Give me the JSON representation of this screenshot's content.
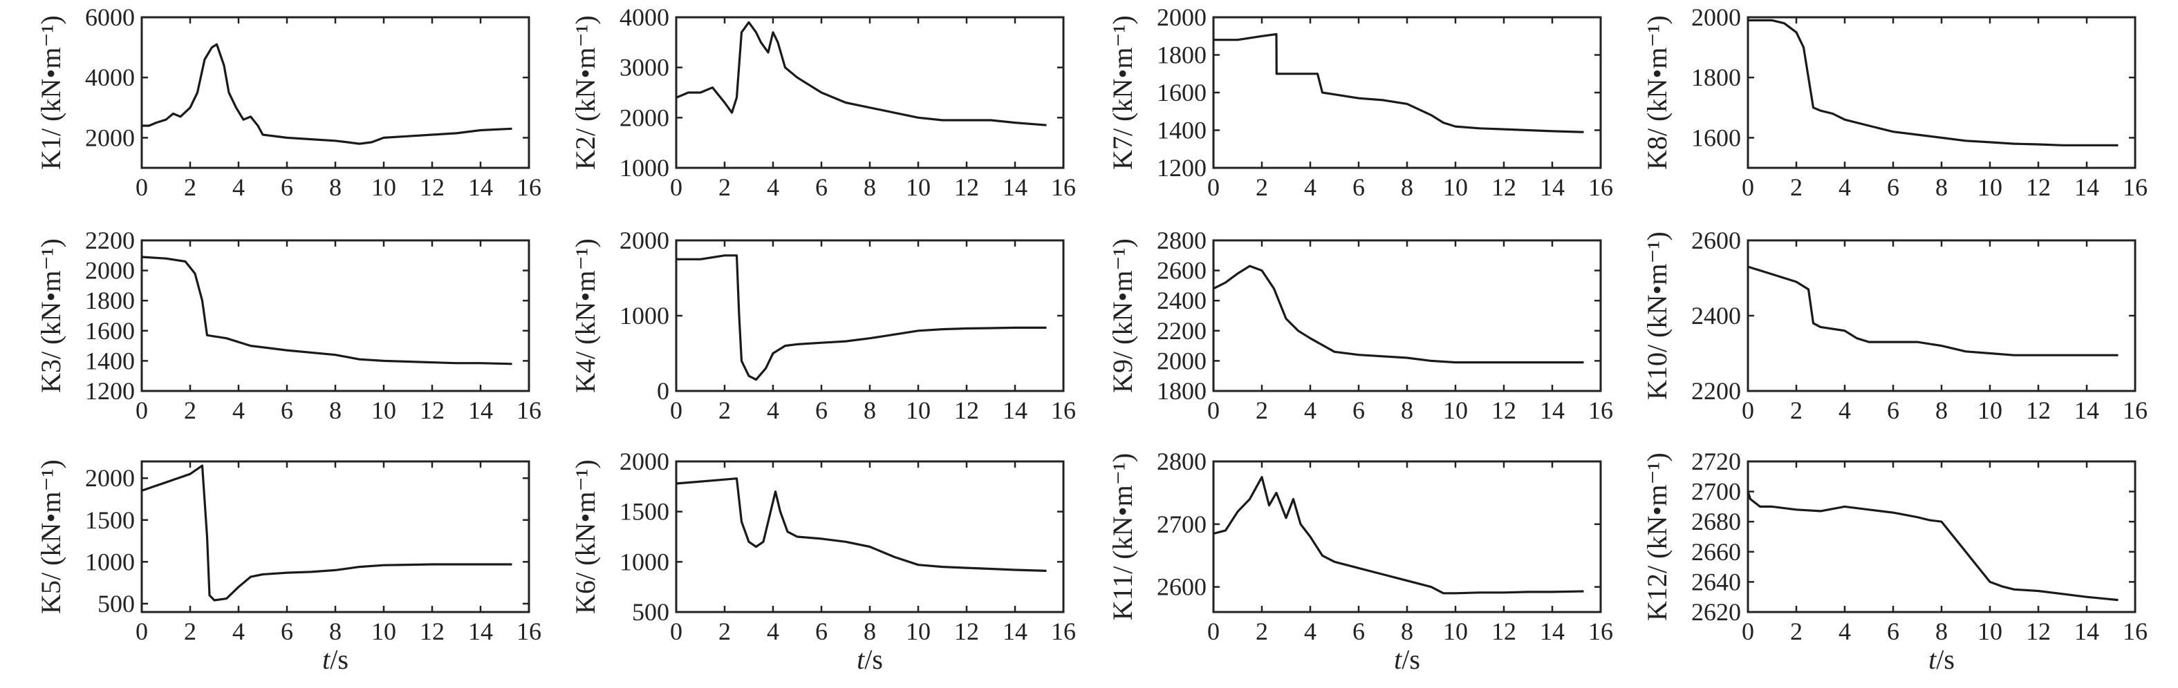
{
  "xlabel_var": "t",
  "xlabel_unit": "/s",
  "chart_data": [
    {
      "type": "line",
      "ylabel": "K1/ (kN•m⁻¹)",
      "xlim": [
        0,
        16
      ],
      "ylim": [
        1000,
        6000
      ],
      "xticks": [
        "0",
        "2",
        "4",
        "6",
        "8",
        "10",
        "12",
        "14",
        "16"
      ],
      "yticks": [
        "2000",
        "4000",
        "6000"
      ],
      "x": [
        0,
        0.3,
        0.6,
        1.0,
        1.3,
        1.6,
        2.0,
        2.3,
        2.6,
        2.9,
        3.1,
        3.4,
        3.6,
        3.9,
        4.2,
        4.5,
        4.8,
        5.0,
        6,
        7,
        8,
        8.5,
        9,
        9.5,
        10,
        11,
        12,
        13,
        14,
        15.3
      ],
      "y": [
        2400,
        2400,
        2500,
        2600,
        2800,
        2700,
        3000,
        3500,
        4600,
        5000,
        5100,
        4400,
        3500,
        3000,
        2600,
        2700,
        2400,
        2100,
        2000,
        1950,
        1900,
        1850,
        1800,
        1850,
        2000,
        2050,
        2100,
        2150,
        2250,
        2300
      ]
    },
    {
      "type": "line",
      "ylabel": "K2/ (kN•m⁻¹)",
      "xlim": [
        0,
        16
      ],
      "ylim": [
        1000,
        4000
      ],
      "xticks": [
        "0",
        "2",
        "4",
        "6",
        "8",
        "10",
        "12",
        "14",
        "16"
      ],
      "yticks": [
        "1000",
        "2000",
        "3000",
        "4000"
      ],
      "x": [
        0,
        0.5,
        1.0,
        1.5,
        2.0,
        2.3,
        2.5,
        2.7,
        3.0,
        3.3,
        3.5,
        3.8,
        4.0,
        4.2,
        4.5,
        5.0,
        6,
        7,
        8,
        9,
        10,
        11,
        12,
        13,
        14,
        15.3
      ],
      "y": [
        2400,
        2500,
        2500,
        2600,
        2300,
        2100,
        2400,
        3700,
        3900,
        3700,
        3500,
        3300,
        3700,
        3500,
        3000,
        2800,
        2500,
        2300,
        2200,
        2100,
        2000,
        1950,
        1950,
        1950,
        1900,
        1850
      ]
    },
    {
      "type": "line",
      "ylabel": "K7/ (kN•m⁻¹)",
      "xlim": [
        0,
        16
      ],
      "ylim": [
        1200,
        2000
      ],
      "xticks": [
        "0",
        "2",
        "4",
        "6",
        "8",
        "10",
        "12",
        "14",
        "16"
      ],
      "yticks": [
        "1200",
        "1400",
        "1600",
        "1800",
        "2000"
      ],
      "x": [
        0,
        1,
        2,
        2.6,
        2.61,
        3.5,
        4.3,
        4.5,
        5,
        6,
        7,
        8,
        9,
        9.5,
        10,
        11,
        12,
        13,
        14,
        15.3
      ],
      "y": [
        1880,
        1880,
        1900,
        1910,
        1700,
        1700,
        1700,
        1600,
        1590,
        1570,
        1560,
        1540,
        1480,
        1440,
        1420,
        1410,
        1405,
        1400,
        1395,
        1390
      ]
    },
    {
      "type": "line",
      "ylabel": "K8/ (kN•m⁻¹)",
      "xlim": [
        0,
        16
      ],
      "ylim": [
        1500,
        2000
      ],
      "xticks": [
        "0",
        "2",
        "4",
        "6",
        "8",
        "10",
        "12",
        "14",
        "16"
      ],
      "yticks": [
        "1600",
        "1800",
        "2000"
      ],
      "x": [
        0,
        1,
        1.5,
        2.0,
        2.3,
        2.5,
        2.7,
        3.0,
        3.5,
        4,
        5,
        6,
        7,
        8,
        9,
        10,
        11,
        12,
        13,
        14,
        15.3
      ],
      "y": [
        1990,
        1990,
        1980,
        1950,
        1900,
        1800,
        1700,
        1690,
        1680,
        1660,
        1640,
        1620,
        1610,
        1600,
        1590,
        1585,
        1580,
        1578,
        1575,
        1575,
        1575
      ]
    },
    {
      "type": "line",
      "ylabel": "K3/ (kN•m⁻¹)",
      "xlim": [
        0,
        16
      ],
      "ylim": [
        1200,
        2200
      ],
      "xticks": [
        "0",
        "2",
        "4",
        "6",
        "8",
        "10",
        "12",
        "14",
        "16"
      ],
      "yticks": [
        "1200",
        "1400",
        "1600",
        "1800",
        "2000",
        "2200"
      ],
      "x": [
        0,
        1,
        1.8,
        2.2,
        2.5,
        2.7,
        3.5,
        4.5,
        6,
        8,
        9,
        10,
        11,
        12,
        13,
        14,
        15.3
      ],
      "y": [
        2090,
        2080,
        2060,
        1980,
        1800,
        1570,
        1550,
        1500,
        1470,
        1440,
        1410,
        1400,
        1395,
        1390,
        1385,
        1385,
        1380
      ]
    },
    {
      "type": "line",
      "ylabel": "K4/ (kN•m⁻¹)",
      "xlim": [
        0,
        16
      ],
      "ylim": [
        0,
        2000
      ],
      "xticks": [
        "0",
        "2",
        "4",
        "6",
        "8",
        "10",
        "12",
        "14",
        "16"
      ],
      "yticks": [
        "0",
        "1000",
        "2000"
      ],
      "x": [
        0,
        1,
        2,
        2.5,
        2.6,
        2.7,
        3,
        3.3,
        3.7,
        4,
        4.5,
        5,
        6,
        7,
        8,
        9,
        10,
        11,
        12,
        13,
        14,
        15.3
      ],
      "y": [
        1750,
        1750,
        1800,
        1800,
        1000,
        400,
        200,
        150,
        300,
        500,
        600,
        620,
        640,
        660,
        700,
        750,
        800,
        820,
        830,
        835,
        840,
        840
      ]
    },
    {
      "type": "line",
      "ylabel": "K9/ (kN•m⁻¹)",
      "xlim": [
        0,
        16
      ],
      "ylim": [
        1800,
        2800
      ],
      "xticks": [
        "0",
        "2",
        "4",
        "6",
        "8",
        "10",
        "12",
        "14",
        "16"
      ],
      "yticks": [
        "1800",
        "2000",
        "2200",
        "2400",
        "2600",
        "2800"
      ],
      "x": [
        0,
        0.5,
        1,
        1.5,
        2,
        2.5,
        3,
        3.5,
        4,
        5,
        6,
        8,
        9,
        10,
        11,
        12,
        13,
        14,
        15.3
      ],
      "y": [
        2480,
        2520,
        2580,
        2630,
        2600,
        2480,
        2280,
        2200,
        2150,
        2060,
        2040,
        2020,
        2000,
        1990,
        1990,
        1990,
        1990,
        1990,
        1990
      ]
    },
    {
      "type": "line",
      "ylabel": "K10/ (kN•m⁻¹)",
      "xlim": [
        0,
        16
      ],
      "ylim": [
        2200,
        2600
      ],
      "xticks": [
        "0",
        "2",
        "4",
        "6",
        "8",
        "10",
        "12",
        "14",
        "16"
      ],
      "yticks": [
        "2200",
        "2400",
        "2600"
      ],
      "x": [
        0,
        1,
        2,
        2.5,
        2.7,
        3,
        4,
        4.5,
        5,
        6,
        7,
        8,
        9,
        10,
        11,
        12,
        13,
        14,
        15.3
      ],
      "y": [
        2530,
        2510,
        2490,
        2470,
        2380,
        2370,
        2360,
        2340,
        2330,
        2330,
        2330,
        2320,
        2305,
        2300,
        2295,
        2295,
        2295,
        2295,
        2295
      ]
    },
    {
      "type": "line",
      "ylabel": "K5/ (kN•m⁻¹)",
      "xlim": [
        0,
        16
      ],
      "ylim": [
        400,
        2200
      ],
      "xticks": [
        "0",
        "2",
        "4",
        "6",
        "8",
        "10",
        "12",
        "14",
        "16"
      ],
      "yticks": [
        "500",
        "1000",
        "1500",
        "2000"
      ],
      "x": [
        0,
        0.5,
        1,
        1.5,
        2,
        2.5,
        2.7,
        2.8,
        3,
        3.5,
        4,
        4.5,
        5,
        6,
        7,
        8,
        9,
        10,
        11,
        12,
        13,
        14,
        15.3
      ],
      "y": [
        1850,
        1900,
        1950,
        2000,
        2050,
        2150,
        1300,
        600,
        540,
        560,
        700,
        820,
        850,
        870,
        880,
        900,
        940,
        960,
        965,
        970,
        970,
        970,
        970
      ]
    },
    {
      "type": "line",
      "ylabel": "K6/ (kN•m⁻¹)",
      "xlim": [
        0,
        16
      ],
      "ylim": [
        500,
        2000
      ],
      "xticks": [
        "0",
        "2",
        "4",
        "6",
        "8",
        "10",
        "12",
        "14",
        "16"
      ],
      "yticks": [
        "500",
        "1000",
        "1500",
        "2000"
      ],
      "x": [
        0,
        1,
        2,
        2.5,
        2.7,
        3,
        3.3,
        3.6,
        3.9,
        4.1,
        4.3,
        4.6,
        5,
        6,
        7,
        8,
        9,
        10,
        11,
        12,
        13,
        14,
        15.3
      ],
      "y": [
        1780,
        1800,
        1820,
        1830,
        1400,
        1200,
        1150,
        1200,
        1500,
        1700,
        1500,
        1300,
        1250,
        1230,
        1200,
        1150,
        1050,
        970,
        950,
        940,
        930,
        920,
        910
      ]
    },
    {
      "type": "line",
      "ylabel": "K11/ (kN•m⁻¹)",
      "xlim": [
        0,
        16
      ],
      "ylim": [
        2560,
        2800
      ],
      "xticks": [
        "0",
        "2",
        "4",
        "6",
        "8",
        "10",
        "12",
        "14",
        "16"
      ],
      "yticks": [
        "2600",
        "2700",
        "2800"
      ],
      "x": [
        0,
        0.5,
        1,
        1.5,
        2,
        2.3,
        2.6,
        3,
        3.3,
        3.6,
        4,
        4.5,
        5,
        6,
        7,
        8,
        9,
        9.5,
        10,
        11,
        12,
        13,
        14,
        15.3
      ],
      "y": [
        2685,
        2690,
        2720,
        2740,
        2775,
        2730,
        2750,
        2710,
        2740,
        2700,
        2680,
        2650,
        2640,
        2630,
        2620,
        2610,
        2600,
        2590,
        2590,
        2591,
        2591,
        2592,
        2592,
        2593
      ]
    },
    {
      "type": "line",
      "ylabel": "K12/ (kN•m⁻¹)",
      "xlim": [
        0,
        16
      ],
      "ylim": [
        2620,
        2720
      ],
      "xticks": [
        "0",
        "2",
        "4",
        "6",
        "8",
        "10",
        "12",
        "14",
        "16"
      ],
      "yticks": [
        "2620",
        "2640",
        "2660",
        "2680",
        "2700",
        "2720"
      ],
      "x": [
        0,
        0.1,
        0.5,
        1,
        2,
        3,
        4,
        5,
        6,
        7,
        7.5,
        8,
        8.5,
        9,
        9.5,
        10,
        10.5,
        11,
        12,
        13,
        14,
        15.3
      ],
      "y": [
        2700,
        2695,
        2690,
        2690,
        2688,
        2687,
        2690,
        2688,
        2686,
        2683,
        2681,
        2680,
        2670,
        2660,
        2650,
        2640,
        2637,
        2635,
        2634,
        2632,
        2630,
        2628
      ]
    }
  ]
}
